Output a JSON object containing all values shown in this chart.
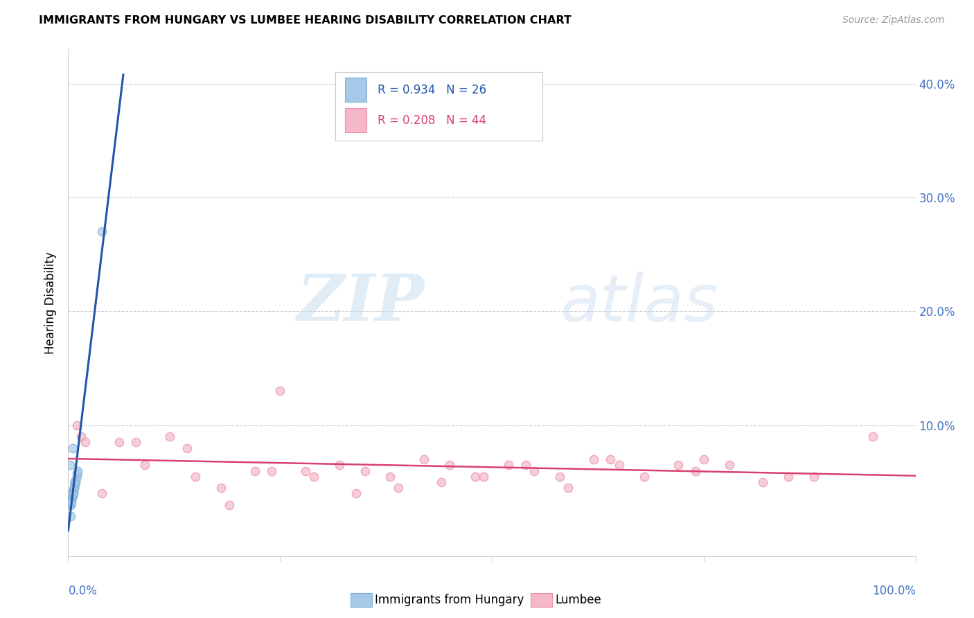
{
  "title": "IMMIGRANTS FROM HUNGARY VS LUMBEE HEARING DISABILITY CORRELATION CHART",
  "source": "Source: ZipAtlas.com",
  "ylabel": "Hearing Disability",
  "yticks": [
    0.0,
    0.1,
    0.2,
    0.3,
    0.4
  ],
  "ytick_labels": [
    "",
    "10.0%",
    "20.0%",
    "30.0%",
    "40.0%"
  ],
  "xlim": [
    0.0,
    1.0
  ],
  "ylim": [
    -0.015,
    0.43
  ],
  "r_blue": 0.934,
  "n_blue": 26,
  "r_pink": 0.208,
  "n_pink": 44,
  "legend_label_blue": "Immigrants from Hungary",
  "legend_label_pink": "Lumbee",
  "watermark_zip": "ZIP",
  "watermark_atlas": "atlas",
  "blue_color": "#a8c8e8",
  "blue_edge_color": "#7aafd4",
  "blue_line_color": "#2255aa",
  "pink_color": "#f5b8c8",
  "pink_edge_color": "#e890a8",
  "pink_line_color": "#d94070",
  "right_axis_color": "#4472c4",
  "grid_color": "#cccccc",
  "blue_scatter_x": [
    0.003,
    0.004,
    0.005,
    0.005,
    0.006,
    0.006,
    0.007,
    0.007,
    0.008,
    0.008,
    0.003,
    0.004,
    0.005,
    0.006,
    0.006,
    0.007,
    0.008,
    0.009,
    0.009,
    0.01,
    0.01,
    0.011,
    0.003,
    0.005,
    0.04,
    0.002
  ],
  "blue_scatter_y": [
    0.03,
    0.035,
    0.038,
    0.042,
    0.04,
    0.044,
    0.045,
    0.046,
    0.048,
    0.05,
    0.031,
    0.033,
    0.039,
    0.041,
    0.04,
    0.046,
    0.05,
    0.052,
    0.05,
    0.055,
    0.058,
    0.06,
    0.02,
    0.08,
    0.27,
    0.065
  ],
  "pink_scatter_x": [
    0.01,
    0.015,
    0.02,
    0.04,
    0.06,
    0.08,
    0.09,
    0.12,
    0.14,
    0.15,
    0.18,
    0.19,
    0.22,
    0.24,
    0.25,
    0.28,
    0.29,
    0.32,
    0.34,
    0.35,
    0.38,
    0.39,
    0.42,
    0.44,
    0.45,
    0.48,
    0.49,
    0.52,
    0.54,
    0.55,
    0.58,
    0.59,
    0.62,
    0.64,
    0.65,
    0.68,
    0.72,
    0.74,
    0.75,
    0.78,
    0.82,
    0.85,
    0.88,
    0.95
  ],
  "pink_scatter_y": [
    0.1,
    0.09,
    0.085,
    0.04,
    0.085,
    0.085,
    0.065,
    0.09,
    0.08,
    0.055,
    0.045,
    0.03,
    0.06,
    0.06,
    0.13,
    0.06,
    0.055,
    0.065,
    0.04,
    0.06,
    0.055,
    0.045,
    0.07,
    0.05,
    0.065,
    0.055,
    0.055,
    0.065,
    0.065,
    0.06,
    0.055,
    0.045,
    0.07,
    0.07,
    0.065,
    0.055,
    0.065,
    0.06,
    0.07,
    0.065,
    0.05,
    0.055,
    0.055,
    0.09
  ]
}
